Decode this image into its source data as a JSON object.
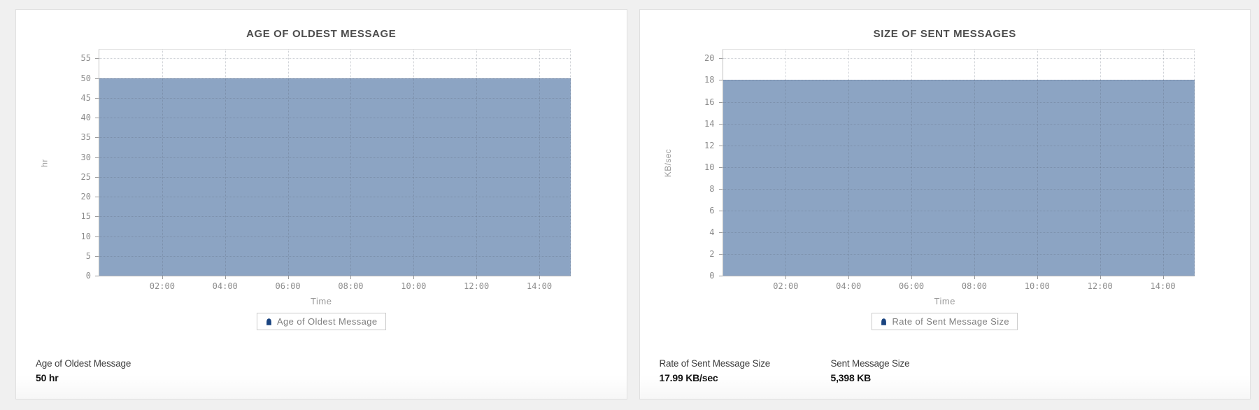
{
  "style": {
    "page_bg": "#f0f0f0",
    "card_bg": "#ffffff",
    "area_fill": "#8ca4c3",
    "area_top_line": "#7d96b6",
    "legend_marker": "#1a4480",
    "grid_color": "#c9ccd1",
    "tick_label_color": "#8c8c8c"
  },
  "chart_data": [
    {
      "type": "area",
      "title": "AGE OF OLDEST MESSAGE",
      "xlabel": "Time",
      "ylabel": "hr",
      "legend": "Age of Oldest Message",
      "legend_position": "bottom",
      "grid": "dotted",
      "x_ticks": [
        "02:00",
        "04:00",
        "06:00",
        "08:00",
        "10:00",
        "12:00",
        "14:00"
      ],
      "x_range_hours": [
        0,
        15
      ],
      "y_ticks": [
        0,
        5,
        10,
        15,
        20,
        25,
        30,
        35,
        40,
        45,
        50,
        55
      ],
      "ylim": [
        0,
        57.2
      ],
      "series": [
        {
          "name": "Age of Oldest Message",
          "constant_value": 50,
          "values": [
            50,
            50,
            50,
            50,
            50,
            50,
            50
          ]
        }
      ],
      "stats": [
        {
          "label": "Age of Oldest Message",
          "value": "50 hr"
        }
      ]
    },
    {
      "type": "area",
      "title": "SIZE OF SENT MESSAGES",
      "xlabel": "Time",
      "ylabel": "KB/sec",
      "legend": "Rate of Sent Message Size",
      "legend_position": "bottom",
      "grid": "dotted",
      "x_ticks": [
        "02:00",
        "04:00",
        "06:00",
        "08:00",
        "10:00",
        "12:00",
        "14:00"
      ],
      "x_range_hours": [
        0,
        15
      ],
      "y_ticks": [
        0,
        2,
        4,
        6,
        8,
        10,
        12,
        14,
        16,
        18,
        20
      ],
      "ylim": [
        0,
        20.8
      ],
      "series": [
        {
          "name": "Rate of Sent Message Size",
          "constant_value": 18,
          "values": [
            18,
            18,
            18,
            18,
            18,
            18,
            18
          ]
        }
      ],
      "stats": [
        {
          "label": "Rate of Sent Message Size",
          "value": "17.99 KB/sec"
        },
        {
          "label": "Sent Message Size",
          "value": "5,398 KB"
        }
      ]
    }
  ]
}
